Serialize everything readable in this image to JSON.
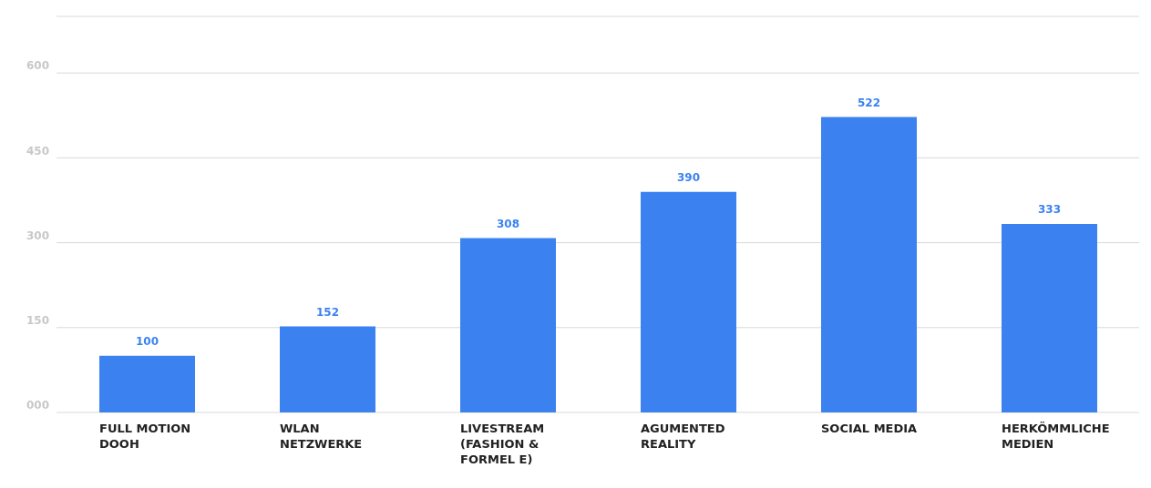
{
  "chart_data": {
    "type": "bar",
    "categories": [
      "FULL MOTION DOOH",
      "WLAN NETZWERKE",
      "LIVESTREAM (FASHION & FORMEL E)",
      "AGUMENTED REALITY",
      "SOCIAL MEDIA",
      "HERKÖMMLICHE MEDIEN"
    ],
    "values": [
      100,
      152,
      308,
      390,
      522,
      333
    ],
    "color": "#3b82f0",
    "ylim": [
      0,
      700
    ],
    "yticks": [
      {
        "value": 0,
        "label": "000"
      },
      {
        "value": 150,
        "label": "150"
      },
      {
        "value": 300,
        "label": "300"
      },
      {
        "value": 450,
        "label": "450"
      },
      {
        "value": 600,
        "label": "600"
      }
    ],
    "grid": "y",
    "data_labels": true
  }
}
